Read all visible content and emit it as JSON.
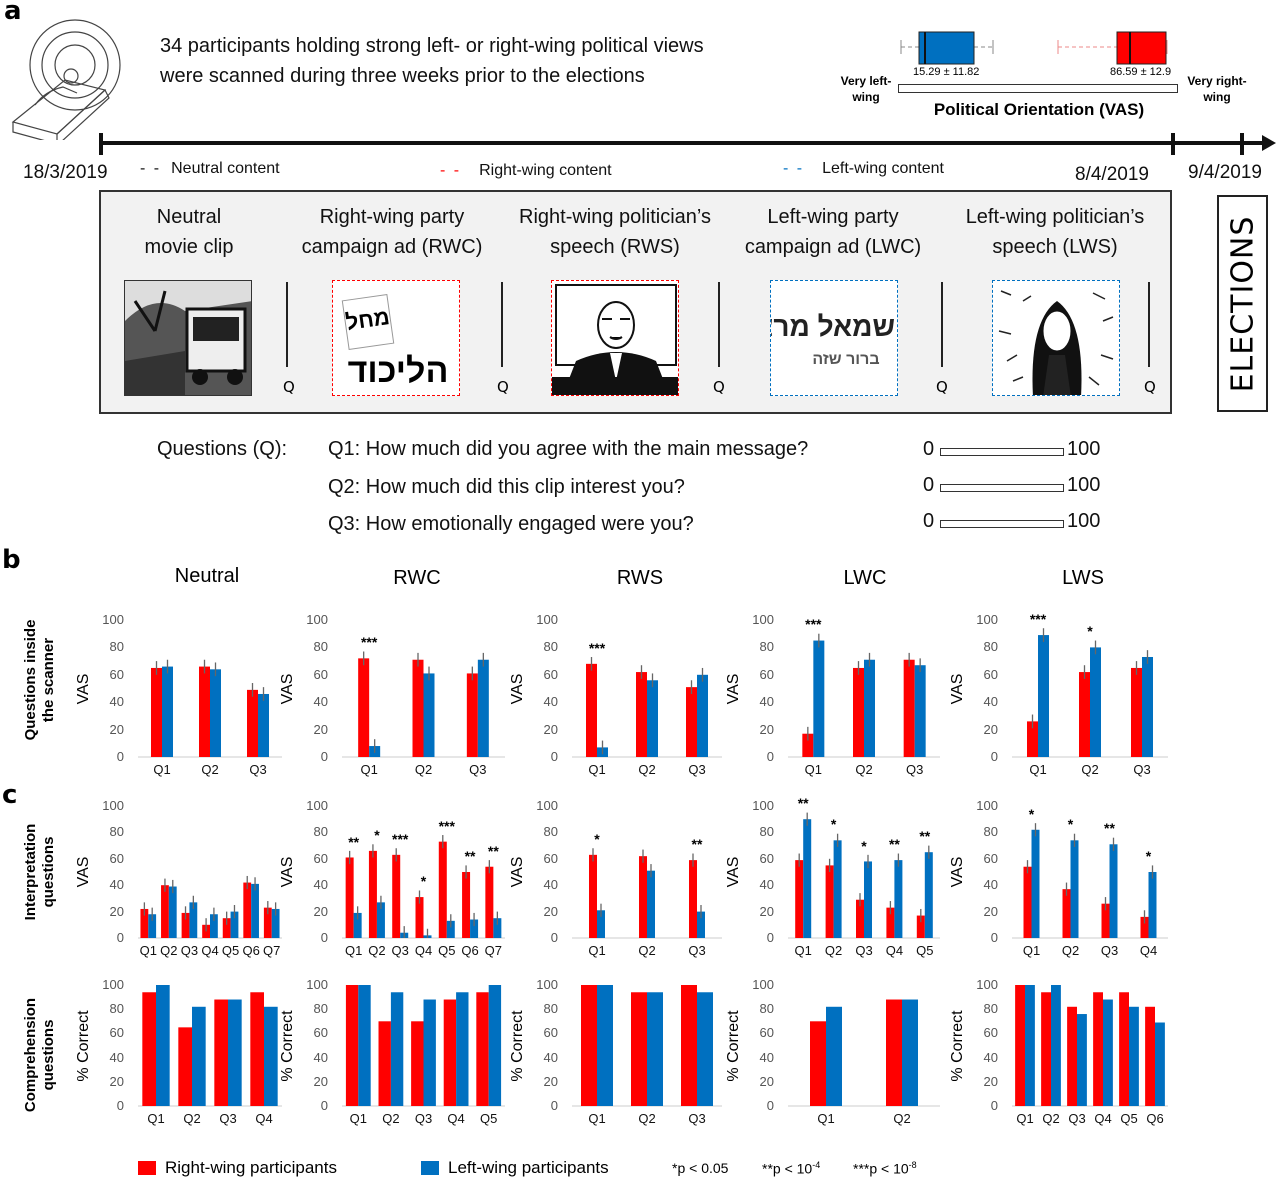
{
  "panel_labels": {
    "a": "a",
    "b": "b",
    "c": "c"
  },
  "intro": {
    "line1": "34 participants holding strong left- or right-wing political views",
    "line2": "were scanned during three weeks prior to the elections"
  },
  "orientation": {
    "title": "Political Orientation (VAS)",
    "left_end": "Very left-wing",
    "right_end": "Very right-wing",
    "left_group": {
      "label": "15.29 ± 11.82",
      "mean": 15.29,
      "sd": 11.82,
      "color": "#0070c0"
    },
    "right_group": {
      "label": "86.59 ± 12.9",
      "mean": 86.59,
      "sd": 12.9,
      "color": "#ff0000"
    }
  },
  "timeline": {
    "start": "18/3/2019",
    "end": "8/4/2019",
    "election": "9/4/2019"
  },
  "content_legend": [
    {
      "label": "Neutral content",
      "color": "#000000"
    },
    {
      "label": "Right-wing content",
      "color": "#ff0000"
    },
    {
      "label": "Left-wing content",
      "color": "#0070c0"
    }
  ],
  "clips": [
    {
      "title1": "Neutral",
      "title2": "movie clip",
      "border": "none",
      "image": "bus-scene"
    },
    {
      "title1": "Right-wing party",
      "title2": "campaign ad (RWC)",
      "border": "#ff0000",
      "image": "likud-poster",
      "logo_text": [
        "מחל",
        "הליכוד"
      ]
    },
    {
      "title1": "Right-wing politician’s",
      "title2": "speech (RWS)",
      "border": "#ff0000",
      "image": "politician-speech"
    },
    {
      "title1": "Left-wing party",
      "title2": "campaign ad (LWC)",
      "border": "#0070c0",
      "image": "meretz-logo",
      "logo_text": [
        "שמאל מרצ",
        "ברור שזה"
      ]
    },
    {
      "title1": "Left-wing politician’s",
      "title2": "speech (LWS)",
      "border": "#0070c0",
      "image": "politician-portrait"
    }
  ],
  "q_marker": "Q",
  "elections": "ELECTIONS",
  "questions": {
    "heading": "Questions (Q):",
    "items": [
      "Q1: How much did you agree with the main message?",
      "Q2: How much did this clip interest you?",
      "Q3: How emotionally engaged were you?"
    ],
    "scale_min": "0",
    "scale_max": "100"
  },
  "column_titles": [
    "Neutral",
    "RWC",
    "RWS",
    "LWC",
    "LWS"
  ],
  "row_labels": {
    "scanner": [
      "Questions inside",
      "the scanner"
    ],
    "interpretation": [
      "Interpretation",
      "questions"
    ],
    "comprehension": [
      "Comprehension",
      "questions"
    ]
  },
  "legend": {
    "right": "Right-wing participants",
    "left": "Left-wing participants",
    "sig1": "*p < 0.05",
    "sig2": "**p < 10",
    "sig2_exp": "-4",
    "sig3": "***p < 10",
    "sig3_exp": "-8",
    "right_color": "#ff0000",
    "left_color": "#0070c0"
  },
  "chart_data": [
    {
      "type": "bar",
      "row": "scanner",
      "column": "Neutral",
      "ylabel": "VAS",
      "ylim": [
        0,
        100
      ],
      "yticks": [
        0,
        20,
        40,
        60,
        80,
        100
      ],
      "categories": [
        "Q1",
        "Q2",
        "Q3"
      ],
      "series": [
        {
          "name": "Right-wing participants",
          "values": [
            65,
            66,
            49
          ]
        },
        {
          "name": "Left-wing participants",
          "values": [
            66,
            64,
            46
          ]
        }
      ],
      "significance": [
        "",
        "",
        ""
      ]
    },
    {
      "type": "bar",
      "row": "scanner",
      "column": "RWC",
      "ylabel": "VAS",
      "ylim": [
        0,
        100
      ],
      "yticks": [
        0,
        20,
        40,
        60,
        80,
        100
      ],
      "categories": [
        "Q1",
        "Q2",
        "Q3"
      ],
      "series": [
        {
          "name": "Right-wing participants",
          "values": [
            72,
            71,
            61
          ]
        },
        {
          "name": "Left-wing participants",
          "values": [
            8,
            61,
            71
          ]
        }
      ],
      "significance": [
        "***",
        "",
        ""
      ]
    },
    {
      "type": "bar",
      "row": "scanner",
      "column": "RWS",
      "ylabel": "VAS",
      "ylim": [
        0,
        100
      ],
      "yticks": [
        0,
        20,
        40,
        60,
        80,
        100
      ],
      "categories": [
        "Q1",
        "Q2",
        "Q3"
      ],
      "series": [
        {
          "name": "Right-wing participants",
          "values": [
            68,
            62,
            51
          ]
        },
        {
          "name": "Left-wing participants",
          "values": [
            7,
            56,
            60
          ]
        }
      ],
      "significance": [
        "***",
        "",
        ""
      ]
    },
    {
      "type": "bar",
      "row": "scanner",
      "column": "LWC",
      "ylabel": "VAS",
      "ylim": [
        0,
        100
      ],
      "yticks": [
        0,
        20,
        40,
        60,
        80,
        100
      ],
      "categories": [
        "Q1",
        "Q2",
        "Q3"
      ],
      "series": [
        {
          "name": "Right-wing participants",
          "values": [
            17,
            65,
            71
          ]
        },
        {
          "name": "Left-wing participants",
          "values": [
            85,
            71,
            67
          ]
        }
      ],
      "significance": [
        "***",
        "",
        ""
      ]
    },
    {
      "type": "bar",
      "row": "scanner",
      "column": "LWS",
      "ylabel": "VAS",
      "ylim": [
        0,
        100
      ],
      "yticks": [
        0,
        20,
        40,
        60,
        80,
        100
      ],
      "categories": [
        "Q1",
        "Q2",
        "Q3"
      ],
      "series": [
        {
          "name": "Right-wing participants",
          "values": [
            26,
            62,
            65
          ]
        },
        {
          "name": "Left-wing participants",
          "values": [
            89,
            80,
            73
          ]
        }
      ],
      "significance": [
        "***",
        "*",
        ""
      ]
    },
    {
      "type": "bar",
      "row": "interpretation",
      "column": "Neutral",
      "ylabel": "VAS",
      "ylim": [
        0,
        100
      ],
      "yticks": [
        0,
        20,
        40,
        60,
        80,
        100
      ],
      "categories": [
        "Q1",
        "Q2",
        "Q3",
        "Q4",
        "Q5",
        "Q6",
        "Q7"
      ],
      "series": [
        {
          "name": "Right-wing participants",
          "values": [
            22,
            40,
            19,
            10,
            15,
            42,
            23
          ]
        },
        {
          "name": "Left-wing participants",
          "values": [
            18,
            39,
            27,
            18,
            20,
            41,
            22
          ]
        }
      ],
      "significance": [
        "",
        "",
        "",
        "",
        "",
        "",
        ""
      ]
    },
    {
      "type": "bar",
      "row": "interpretation",
      "column": "RWC",
      "ylabel": "VAS",
      "ylim": [
        0,
        100
      ],
      "yticks": [
        0,
        20,
        40,
        60,
        80,
        100
      ],
      "categories": [
        "Q1",
        "Q2",
        "Q3",
        "Q4",
        "Q5",
        "Q6",
        "Q7"
      ],
      "series": [
        {
          "name": "Right-wing participants",
          "values": [
            61,
            66,
            63,
            31,
            73,
            50,
            54
          ]
        },
        {
          "name": "Left-wing participants",
          "values": [
            19,
            27,
            4,
            2,
            13,
            14,
            15
          ]
        }
      ],
      "significance": [
        "**",
        "*",
        "***",
        "*",
        "***",
        "**",
        "**"
      ]
    },
    {
      "type": "bar",
      "row": "interpretation",
      "column": "RWS",
      "ylabel": "VAS",
      "ylim": [
        0,
        100
      ],
      "yticks": [
        0,
        20,
        40,
        60,
        80,
        100
      ],
      "categories": [
        "Q1",
        "Q2",
        "Q3"
      ],
      "series": [
        {
          "name": "Right-wing participants",
          "values": [
            63,
            62,
            59
          ]
        },
        {
          "name": "Left-wing participants",
          "values": [
            21,
            51,
            20
          ]
        }
      ],
      "significance": [
        "*",
        "",
        "**"
      ]
    },
    {
      "type": "bar",
      "row": "interpretation",
      "column": "LWC",
      "ylabel": "VAS",
      "ylim": [
        0,
        100
      ],
      "yticks": [
        0,
        20,
        40,
        60,
        80,
        100
      ],
      "categories": [
        "Q1",
        "Q2",
        "Q3",
        "Q4",
        "Q5"
      ],
      "series": [
        {
          "name": "Right-wing participants",
          "values": [
            59,
            55,
            29,
            23,
            17
          ]
        },
        {
          "name": "Left-wing participants",
          "values": [
            90,
            74,
            58,
            59,
            65
          ]
        }
      ],
      "significance": [
        "**",
        "*",
        "*",
        "**",
        "**"
      ]
    },
    {
      "type": "bar",
      "row": "interpretation",
      "column": "LWS",
      "ylabel": "VAS",
      "ylim": [
        0,
        100
      ],
      "yticks": [
        0,
        20,
        40,
        60,
        80,
        100
      ],
      "categories": [
        "Q1",
        "Q2",
        "Q3",
        "Q4"
      ],
      "series": [
        {
          "name": "Right-wing participants",
          "values": [
            54,
            37,
            26,
            16
          ]
        },
        {
          "name": "Left-wing participants",
          "values": [
            82,
            74,
            71,
            50
          ]
        }
      ],
      "significance": [
        "*",
        "*",
        "**",
        "*"
      ]
    },
    {
      "type": "bar",
      "row": "comprehension",
      "column": "Neutral",
      "ylabel": "% Correct",
      "ylim": [
        0,
        100
      ],
      "yticks": [
        0,
        20,
        40,
        60,
        80,
        100
      ],
      "categories": [
        "Q1",
        "Q2",
        "Q3",
        "Q4"
      ],
      "series": [
        {
          "name": "Right-wing participants",
          "values": [
            94,
            65,
            88,
            94
          ]
        },
        {
          "name": "Left-wing participants",
          "values": [
            100,
            82,
            88,
            82
          ]
        }
      ]
    },
    {
      "type": "bar",
      "row": "comprehension",
      "column": "RWC",
      "ylabel": "% Correct",
      "ylim": [
        0,
        100
      ],
      "yticks": [
        0,
        20,
        40,
        60,
        80,
        100
      ],
      "categories": [
        "Q1",
        "Q2",
        "Q3",
        "Q4",
        "Q5"
      ],
      "series": [
        {
          "name": "Right-wing participants",
          "values": [
            100,
            70,
            70,
            88,
            94
          ]
        },
        {
          "name": "Left-wing participants",
          "values": [
            100,
            94,
            88,
            94,
            100
          ]
        }
      ]
    },
    {
      "type": "bar",
      "row": "comprehension",
      "column": "RWS",
      "ylabel": "% Correct",
      "ylim": [
        0,
        100
      ],
      "yticks": [
        0,
        20,
        40,
        60,
        80,
        100
      ],
      "categories": [
        "Q1",
        "Q2",
        "Q3"
      ],
      "series": [
        {
          "name": "Right-wing participants",
          "values": [
            100,
            94,
            100
          ]
        },
        {
          "name": "Left-wing participants",
          "values": [
            100,
            94,
            94
          ]
        }
      ]
    },
    {
      "type": "bar",
      "row": "comprehension",
      "column": "LWC",
      "ylabel": "% Correct",
      "ylim": [
        0,
        100
      ],
      "yticks": [
        0,
        20,
        40,
        60,
        80,
        100
      ],
      "categories": [
        "Q1",
        "Q2"
      ],
      "series": [
        {
          "name": "Right-wing participants",
          "values": [
            70,
            88
          ]
        },
        {
          "name": "Left-wing participants",
          "values": [
            82,
            88
          ]
        }
      ]
    },
    {
      "type": "bar",
      "row": "comprehension",
      "column": "LWS",
      "ylabel": "% Correct",
      "ylim": [
        0,
        100
      ],
      "yticks": [
        0,
        20,
        40,
        60,
        80,
        100
      ],
      "categories": [
        "Q1",
        "Q2",
        "Q3",
        "Q4",
        "Q5",
        "Q6"
      ],
      "series": [
        {
          "name": "Right-wing participants",
          "values": [
            100,
            94,
            82,
            94,
            94,
            82
          ]
        },
        {
          "name": "Left-wing participants",
          "values": [
            100,
            100,
            76,
            88,
            82,
            69
          ]
        }
      ]
    }
  ]
}
